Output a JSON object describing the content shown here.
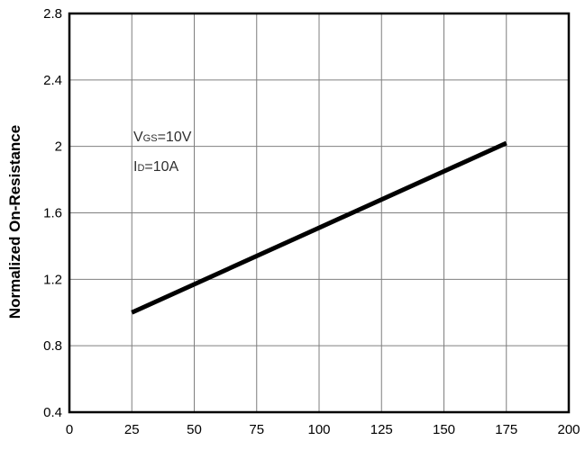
{
  "chart_data": {
    "type": "line",
    "title": "",
    "xlabel": "",
    "ylabel": "Normalized On-Resistance",
    "xlim": [
      0,
      200
    ],
    "ylim": [
      0.4,
      2.8
    ],
    "x_ticks": [
      0,
      25,
      50,
      75,
      100,
      125,
      150,
      175,
      200
    ],
    "y_ticks": [
      0.4,
      0.8,
      1.2,
      1.6,
      2,
      2.4,
      2.8
    ],
    "x_tick_labels": [
      "0",
      "25",
      "50",
      "75",
      "100",
      "125",
      "150",
      "175",
      "200"
    ],
    "y_tick_labels": [
      "0.4",
      "0.8",
      "1.2",
      "1.6",
      "2",
      "2.4",
      "2.8"
    ],
    "grid": true,
    "series": [
      {
        "x": [
          25,
          175
        ],
        "y": [
          1.0,
          2.02
        ],
        "color": "#000000"
      }
    ],
    "annotations": [
      {
        "main": "V",
        "sub": "GS",
        "rest": "=10V"
      },
      {
        "main": "I",
        "sub": "D",
        "rest": "=10A"
      }
    ]
  }
}
